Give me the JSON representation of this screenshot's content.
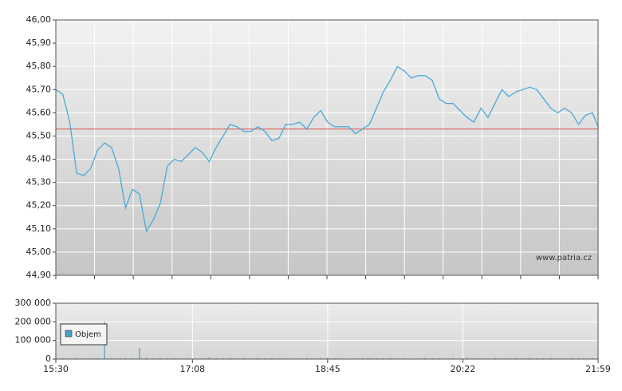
{
  "chart_data": [
    {
      "type": "line",
      "watermark": "www.patria.cz",
      "x": [
        "15:30",
        "15:35",
        "15:40",
        "15:45",
        "15:50",
        "15:55",
        "16:00",
        "16:05",
        "16:10",
        "16:15",
        "16:20",
        "16:25",
        "16:30",
        "16:35",
        "16:40",
        "16:45",
        "16:50",
        "16:55",
        "17:00",
        "17:05",
        "17:10",
        "17:15",
        "17:20",
        "17:25",
        "17:30",
        "17:35",
        "17:40",
        "17:45",
        "17:50",
        "17:55",
        "18:00",
        "18:05",
        "18:10",
        "18:15",
        "18:20",
        "18:25",
        "18:30",
        "18:35",
        "18:40",
        "18:45",
        "18:50",
        "18:55",
        "19:00",
        "19:05",
        "19:10",
        "19:15",
        "19:20",
        "19:25",
        "19:30",
        "19:35",
        "19:40",
        "19:45",
        "19:50",
        "19:55",
        "20:00",
        "20:05",
        "20:10",
        "20:15",
        "20:20",
        "20:25",
        "20:30",
        "20:35",
        "20:40",
        "20:45",
        "20:50",
        "20:55",
        "21:00",
        "21:05",
        "21:10",
        "21:15",
        "21:20",
        "21:25",
        "21:30",
        "21:35",
        "21:40",
        "21:45",
        "21:50",
        "21:55",
        "21:59"
      ],
      "series": [
        {
          "color": "#4aaad4",
          "values": [
            45.7,
            45.68,
            45.56,
            45.34,
            45.33,
            45.36,
            45.44,
            45.47,
            45.45,
            45.36,
            45.19,
            45.27,
            45.25,
            45.09,
            45.14,
            45.21,
            45.37,
            45.4,
            45.39,
            45.42,
            45.45,
            45.43,
            45.39,
            45.45,
            45.5,
            45.55,
            45.54,
            45.52,
            45.52,
            45.54,
            45.52,
            45.48,
            45.49,
            45.55,
            45.55,
            45.56,
            45.53,
            45.58,
            45.61,
            45.56,
            45.54,
            45.54,
            45.54,
            45.51,
            45.53,
            45.55,
            45.62,
            45.69,
            45.74,
            45.8,
            45.78,
            45.75,
            45.76,
            45.76,
            45.74,
            45.66,
            45.64,
            45.64,
            45.61,
            45.58,
            45.56,
            45.62,
            45.58,
            45.64,
            45.7,
            45.67,
            45.69,
            45.7,
            45.71,
            45.7,
            45.66,
            45.62,
            45.6,
            45.62,
            45.6,
            45.55,
            45.59,
            45.6,
            45.54
          ]
        }
      ],
      "reference_line": {
        "value": 45.53,
        "color": "#d9534f"
      },
      "xlim": [
        "15:30",
        "21:59"
      ],
      "ylim": [
        44.9,
        46.0
      ],
      "yticks": [
        {
          "value": 44.9,
          "label": "44,90"
        },
        {
          "value": 45.0,
          "label": "45,00"
        },
        {
          "value": 45.1,
          "label": "45,10"
        },
        {
          "value": 45.2,
          "label": "45,20"
        },
        {
          "value": 45.3,
          "label": "45,30"
        },
        {
          "value": 45.4,
          "label": "45,40"
        },
        {
          "value": 45.5,
          "label": "45,50"
        },
        {
          "value": 45.6,
          "label": "45,60"
        },
        {
          "value": 45.7,
          "label": "45,70"
        },
        {
          "value": 45.8,
          "label": "45,80"
        },
        {
          "value": 45.9,
          "label": "45,90"
        },
        {
          "value": 46.0,
          "label": "46,00"
        }
      ],
      "grid": true
    },
    {
      "type": "bar",
      "x": [
        "15:30",
        "15:35",
        "15:40",
        "15:45",
        "15:50",
        "15:55",
        "16:00",
        "16:05",
        "16:10",
        "16:15",
        "16:20",
        "16:25",
        "16:30",
        "16:35",
        "16:40",
        "16:45",
        "16:50",
        "16:55",
        "17:00",
        "17:05",
        "17:10",
        "17:15",
        "17:20",
        "17:25",
        "17:30",
        "17:35",
        "17:40",
        "17:45",
        "17:50",
        "17:55",
        "18:00",
        "18:05",
        "18:10",
        "18:15",
        "18:20",
        "18:25",
        "18:30",
        "18:35",
        "18:40",
        "18:45",
        "18:50",
        "18:55",
        "19:00",
        "19:05",
        "19:10",
        "19:15",
        "19:20",
        "19:25",
        "19:30",
        "19:35",
        "19:40",
        "19:45",
        "19:50",
        "19:55",
        "20:00",
        "20:05",
        "20:10",
        "20:15",
        "20:20",
        "20:25",
        "20:30",
        "20:35",
        "20:40",
        "20:45",
        "20:50",
        "20:55",
        "21:00",
        "21:05",
        "21:10",
        "21:15",
        "21:20",
        "21:25",
        "21:30",
        "21:35",
        "21:40",
        "21:45",
        "21:50",
        "21:55",
        "21:59"
      ],
      "series": [
        {
          "name": "Objem",
          "color": "#4a9ec8",
          "values": [
            8000,
            6000,
            5000,
            7000,
            4000,
            5000,
            6000,
            200000,
            5000,
            4000,
            6000,
            5000,
            60000,
            7000,
            5000,
            6000,
            4000,
            5000,
            3000,
            6000,
            4000,
            5000,
            8000,
            4000,
            5000,
            6000,
            4000,
            5000,
            3000,
            6000,
            4000,
            5000,
            4000,
            5000,
            3000,
            4000,
            6000,
            4000,
            5000,
            7000,
            4000,
            5000,
            3000,
            4000,
            6000,
            5000,
            4000,
            5000,
            6000,
            4000,
            5000,
            3000,
            4000,
            6000,
            5000,
            4000,
            3000,
            6000,
            4000,
            8000,
            5000,
            4000,
            3000,
            6000,
            4000,
            5000,
            6000,
            4000,
            7000,
            5000,
            4000,
            6000,
            5000,
            4000,
            5000,
            6000,
            4000,
            5000,
            6000
          ]
        }
      ],
      "xlim": [
        "15:30",
        "21:59"
      ],
      "xticks": [
        "15:30",
        "17:08",
        "18:45",
        "20:22",
        "21:59"
      ],
      "ylim": [
        0,
        300000
      ],
      "yticks": [
        {
          "value": 0,
          "label": "0"
        },
        {
          "value": 100000,
          "label": "100 000"
        },
        {
          "value": 200000,
          "label": "200 000"
        },
        {
          "value": 300000,
          "label": "300 000"
        }
      ],
      "grid": true
    }
  ]
}
